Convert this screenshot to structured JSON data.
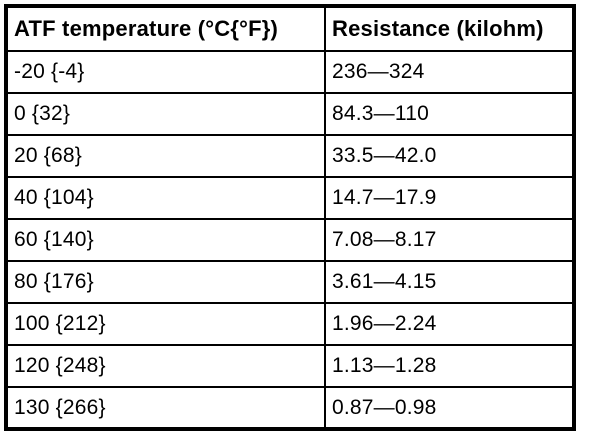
{
  "table": {
    "headers": [
      "ATF temperature (°C{°F})",
      "Resistance (kilohm)"
    ],
    "rows": [
      [
        "-20 {-4}",
        "236—324"
      ],
      [
        "0 {32}",
        "84.3—110"
      ],
      [
        "20 {68}",
        "33.5—42.0"
      ],
      [
        "40 {104}",
        "14.7—17.9"
      ],
      [
        "60 {140}",
        "7.08—8.17"
      ],
      [
        "80 {176}",
        "3.61—4.15"
      ],
      [
        "100 {212}",
        "1.96—2.24"
      ],
      [
        "120 {248}",
        "1.13—1.28"
      ],
      [
        "130 {266}",
        "0.87—0.98"
      ]
    ],
    "colors": {
      "border": "#000000",
      "background": "#ffffff",
      "text": "#000000"
    }
  }
}
